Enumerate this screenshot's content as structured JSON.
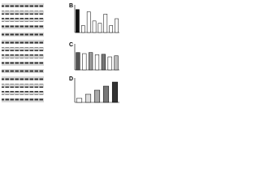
{
  "chart_data": [
    {
      "type": "bar",
      "title": "B",
      "values": [
        1.0,
        0.3,
        0.9,
        0.5,
        0.4,
        0.8,
        0.3,
        0.6
      ],
      "colors": [
        "#111111",
        "#ffffff",
        "#ffffff",
        "#ffffff",
        "#ffffff",
        "#ffffff",
        "#ffffff",
        "#ffffff"
      ],
      "ylim": [
        0,
        1.2
      ]
    },
    {
      "type": "bar",
      "title": "C",
      "values": [
        0.8,
        0.75,
        0.8,
        0.7,
        0.72,
        0.6,
        0.65
      ],
      "colors": [
        "#555555",
        "#ffffff",
        "#999999",
        "#ffffff",
        "#777777",
        "#ffffff",
        "#bbbbbb"
      ],
      "ylim": [
        0,
        1.2
      ]
    },
    {
      "type": "bar",
      "title": "D",
      "values": [
        0.2,
        0.4,
        0.6,
        0.8,
        1.0
      ],
      "colors": [
        "#ffffff",
        "#dddddd",
        "#aaaaaa",
        "#777777",
        "#333333"
      ],
      "ylim": [
        0,
        1.2
      ]
    }
  ]
}
